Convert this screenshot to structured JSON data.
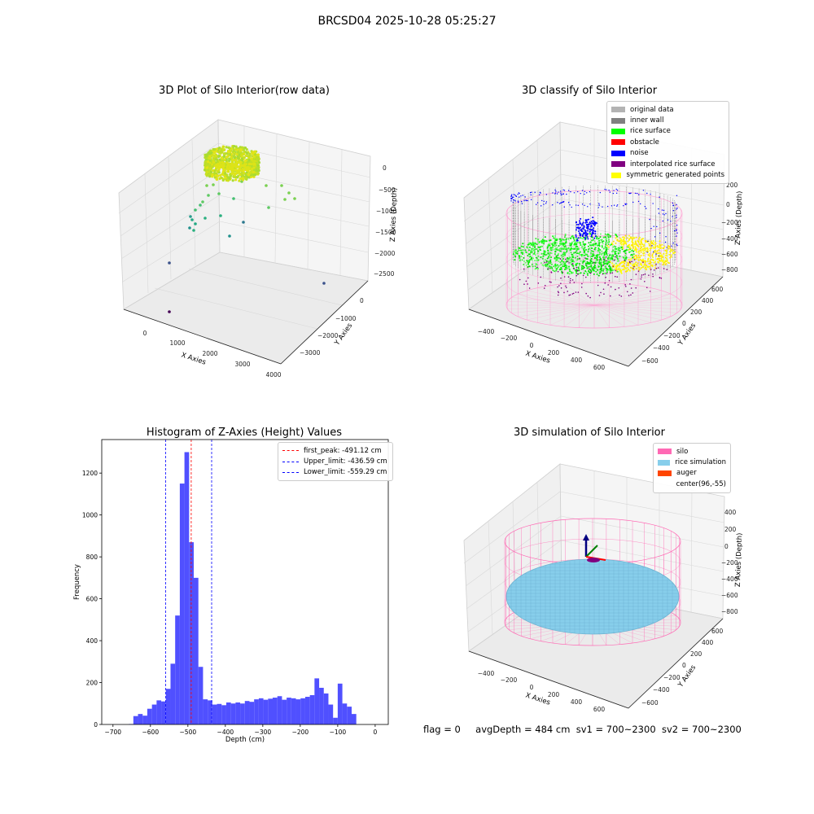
{
  "figure": {
    "suptitle": "BRCSD04 2025-10-28 05:25:27"
  },
  "status": {
    "flag": "flag = 0",
    "avg_depth": "avgDepth = 484 cm",
    "sv1": "sv1 = 700~2300",
    "sv2": "sv2 = 700~2300"
  },
  "chart_data": [
    {
      "type": "scatter",
      "projection": "3d",
      "title": "3D Plot of Silo Interior(row data)",
      "xlabel": "X Axies",
      "ylabel": "Y Axies",
      "zlabel": "Z Axies (Depth)",
      "x_ticks": [
        "0",
        "1000",
        "2000",
        "3000",
        "4000"
      ],
      "y_ticks": [
        "0",
        "−1000",
        "−2000",
        "−3000"
      ],
      "z_ticks": [
        "0",
        "−500",
        "−1000",
        "−1500",
        "−2000",
        "−2500"
      ],
      "colormap": "viridis",
      "ring_color": "#c8e020",
      "points_color_range": [
        "#440154",
        "#21918c",
        "#7ad151",
        "#fde725"
      ]
    },
    {
      "type": "scatter",
      "projection": "3d",
      "title": "3D classify of Silo Interior",
      "xlabel": "X Axies",
      "ylabel": "Y Axies",
      "zlabel": "Z Axies (Depth)",
      "x_ticks": [
        "−400",
        "−200",
        "0",
        "200",
        "400",
        "600"
      ],
      "y_ticks": [
        "600",
        "400",
        "200",
        "0",
        "−200",
        "−400",
        "−600"
      ],
      "z_ticks": [
        "200",
        "0",
        "−200",
        "−400",
        "−600",
        "−800"
      ],
      "legend_position": "upper-right",
      "legend": [
        {
          "label": "original data",
          "color": "#b3b3b3"
        },
        {
          "label": "inner wall",
          "color": "#808080"
        },
        {
          "label": "rice surface",
          "color": "#00ff00"
        },
        {
          "label": "obstacle",
          "color": "#ff0000"
        },
        {
          "label": "noise",
          "color": "#0000ff"
        },
        {
          "label": "interpolated rice surface",
          "color": "#800080"
        },
        {
          "label": "symmetric generated points",
          "color": "#ffff00"
        }
      ]
    },
    {
      "type": "bar",
      "title": "Histogram of Z-Axies (Height) Values",
      "xlabel": "Depth (cm)",
      "ylabel": "Frequency",
      "xlim": [
        -730,
        35
      ],
      "ylim": [
        0,
        1360
      ],
      "x_ticks": [
        -700,
        -600,
        -500,
        -400,
        -300,
        -200,
        -100,
        0
      ],
      "x_tick_labels": [
        "−700",
        "−600",
        "−500",
        "−400",
        "−300",
        "−200",
        "−100",
        "0"
      ],
      "y_ticks": [
        0,
        200,
        400,
        600,
        800,
        1000,
        1200
      ],
      "y_tick_labels": [
        "0",
        "200",
        "400",
        "600",
        "800",
        "1000",
        "1200"
      ],
      "bar_color": "#4d4dff",
      "bin_width": 12.4,
      "bin_start": -658,
      "values": [
        2,
        40,
        50,
        42,
        75,
        95,
        115,
        110,
        170,
        290,
        520,
        1150,
        1300,
        870,
        700,
        275,
        120,
        115,
        95,
        98,
        92,
        105,
        100,
        105,
        100,
        112,
        108,
        120,
        125,
        118,
        123,
        128,
        135,
        118,
        128,
        125,
        120,
        125,
        132,
        140,
        220,
        175,
        148,
        95,
        32,
        195,
        100,
        85,
        50
      ],
      "vlines": [
        {
          "x": -491.12,
          "color": "#ff0000",
          "label": "first_peak: -491.12 cm"
        },
        {
          "x": -436.59,
          "color": "#0000ff",
          "label": "Upper_limit: -436.59 cm"
        },
        {
          "x": -559.29,
          "color": "#0000ff",
          "label": "Lower_limit: -559.29 cm"
        }
      ],
      "legend_position": "upper-right"
    },
    {
      "type": "scatter",
      "projection": "3d",
      "title": "3D simulation of Silo Interior",
      "xlabel": "X Axies",
      "ylabel": "Y Axies",
      "zlabel": "Z Axies (Depth)",
      "x_ticks": [
        "−400",
        "−200",
        "0",
        "200",
        "400",
        "600"
      ],
      "y_ticks": [
        "600",
        "400",
        "200",
        "0",
        "−200",
        "−400",
        "−600"
      ],
      "z_ticks": [
        "400",
        "200",
        "0",
        "−200",
        "−400",
        "−600",
        "−800"
      ],
      "legend_position": "upper-right",
      "legend": [
        {
          "label": "silo",
          "color": "#ff69b4"
        },
        {
          "label": "rice simulation",
          "color": "#87ceeb"
        },
        {
          "label": "auger",
          "color": "#ff4500"
        },
        {
          "label": "center(96,-55)",
          "color": ""
        }
      ]
    }
  ]
}
